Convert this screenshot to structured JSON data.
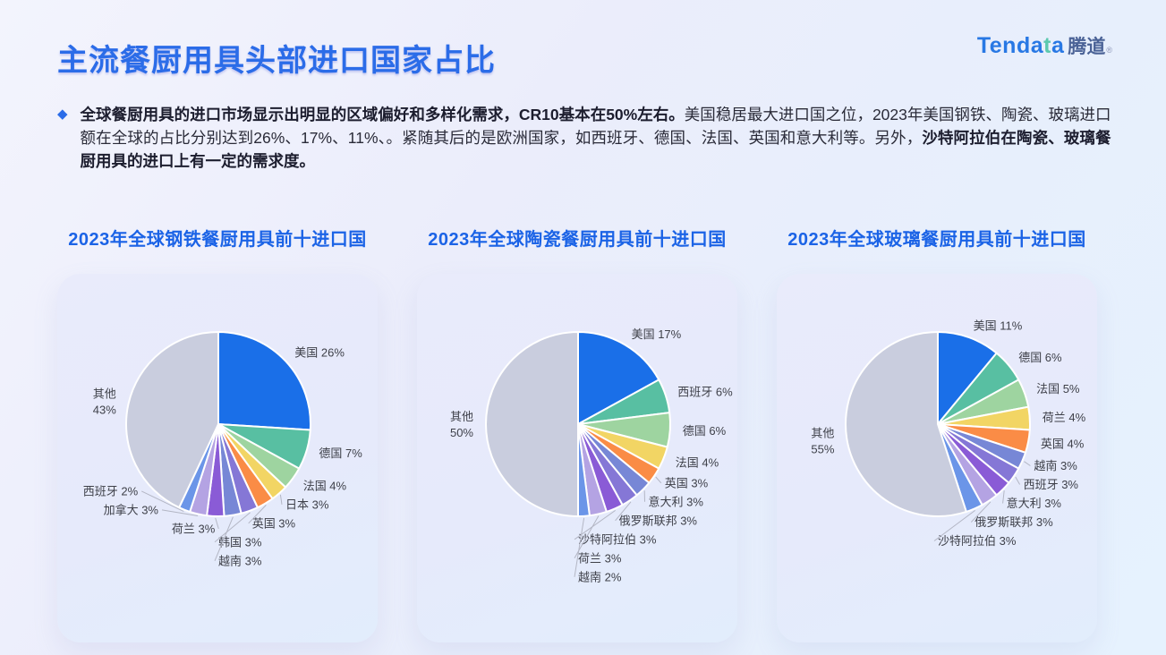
{
  "page": {
    "title": "主流餐厨用具头部进口国家占比",
    "logo": {
      "brand_pre": "Tenda",
      "brand_t": "t",
      "brand_post": "a",
      "suffix": "腾道",
      "reg": "®"
    },
    "bullet": {
      "lead_bold": "全球餐厨用具的进口市场显示出明显的区域偏好和多样化需求，CR10基本在50%左右。",
      "middle": "美国稳居最大进口国之位，2023年美国钢铁、陶瓷、玻璃进口额在全球的占比分别达到26%、17%、11%、。紧随其后的是欧洲国家，如西班牙、德国、法国、英国和意大利等。另外，",
      "tail_bold": "沙特阿拉伯在陶瓷、玻璃餐厨用具的进口上有一定的需求度。"
    },
    "accent_color": "#2b6ce8"
  },
  "chart_data": [
    {
      "type": "pie",
      "title": "2023年全球钢铁餐厨用具前十进口国",
      "unit": "%",
      "start_angle": "top",
      "direction": "clockwise",
      "legend": "none",
      "slices": [
        {
          "label": "美国",
          "value": 26,
          "color": "#1a6fe8"
        },
        {
          "label": "德国",
          "value": 7,
          "color": "#58bfa2"
        },
        {
          "label": "法国",
          "value": 4,
          "color": "#9ed4a0"
        },
        {
          "label": "日本",
          "value": 3,
          "color": "#f2d564"
        },
        {
          "label": "英国",
          "value": 3,
          "color": "#fa8c46"
        },
        {
          "label": "韩国",
          "value": 3,
          "color": "#8577d6"
        },
        {
          "label": "越南",
          "value": 3,
          "color": "#7787d6"
        },
        {
          "label": "荷兰",
          "value": 3,
          "color": "#8a5bd6"
        },
        {
          "label": "加拿大",
          "value": 3,
          "color": "#b4a3e3"
        },
        {
          "label": "西班牙",
          "value": 2,
          "color": "#6b95e8"
        },
        {
          "label": "其他",
          "value": 43,
          "color": "#c9cdde",
          "other": true
        }
      ]
    },
    {
      "type": "pie",
      "title": "2023年全球陶瓷餐厨用具前十进口国",
      "unit": "%",
      "start_angle": "top",
      "direction": "clockwise",
      "legend": "none",
      "slices": [
        {
          "label": "美国",
          "value": 17,
          "color": "#1a6fe8"
        },
        {
          "label": "西班牙",
          "value": 6,
          "color": "#58bfa2"
        },
        {
          "label": "德国",
          "value": 6,
          "color": "#9ed4a0"
        },
        {
          "label": "法国",
          "value": 4,
          "color": "#f2d564"
        },
        {
          "label": "英国",
          "value": 3,
          "color": "#fa8c46"
        },
        {
          "label": "意大利",
          "value": 3,
          "color": "#7787d6"
        },
        {
          "label": "俄罗斯联邦",
          "value": 3,
          "color": "#8577d6"
        },
        {
          "label": "沙特阿拉伯",
          "value": 3,
          "color": "#8a5bd6"
        },
        {
          "label": "荷兰",
          "value": 3,
          "color": "#b4a3e3"
        },
        {
          "label": "越南",
          "value": 2,
          "color": "#6b95e8"
        },
        {
          "label": "其他",
          "value": 50,
          "color": "#c9cdde",
          "other": true
        }
      ]
    },
    {
      "type": "pie",
      "title": "2023年全球玻璃餐厨用具前十进口国",
      "unit": "%",
      "start_angle": "top",
      "direction": "clockwise",
      "legend": "none",
      "slices": [
        {
          "label": "美国",
          "value": 11,
          "color": "#1a6fe8"
        },
        {
          "label": "德国",
          "value": 6,
          "color": "#58bfa2"
        },
        {
          "label": "法国",
          "value": 5,
          "color": "#9ed4a0"
        },
        {
          "label": "荷兰",
          "value": 4,
          "color": "#f2d564"
        },
        {
          "label": "英国",
          "value": 4,
          "color": "#fa8c46"
        },
        {
          "label": "越南",
          "value": 3,
          "color": "#7787d6"
        },
        {
          "label": "西班牙",
          "value": 3,
          "color": "#8577d6"
        },
        {
          "label": "意大利",
          "value": 3,
          "color": "#8a5bd6"
        },
        {
          "label": "俄罗斯联邦",
          "value": 3,
          "color": "#b4a3e3"
        },
        {
          "label": "沙特阿拉伯",
          "value": 3,
          "color": "#6b95e8"
        },
        {
          "label": "其他",
          "value": 55,
          "color": "#c9cdde",
          "other": true
        }
      ]
    }
  ]
}
